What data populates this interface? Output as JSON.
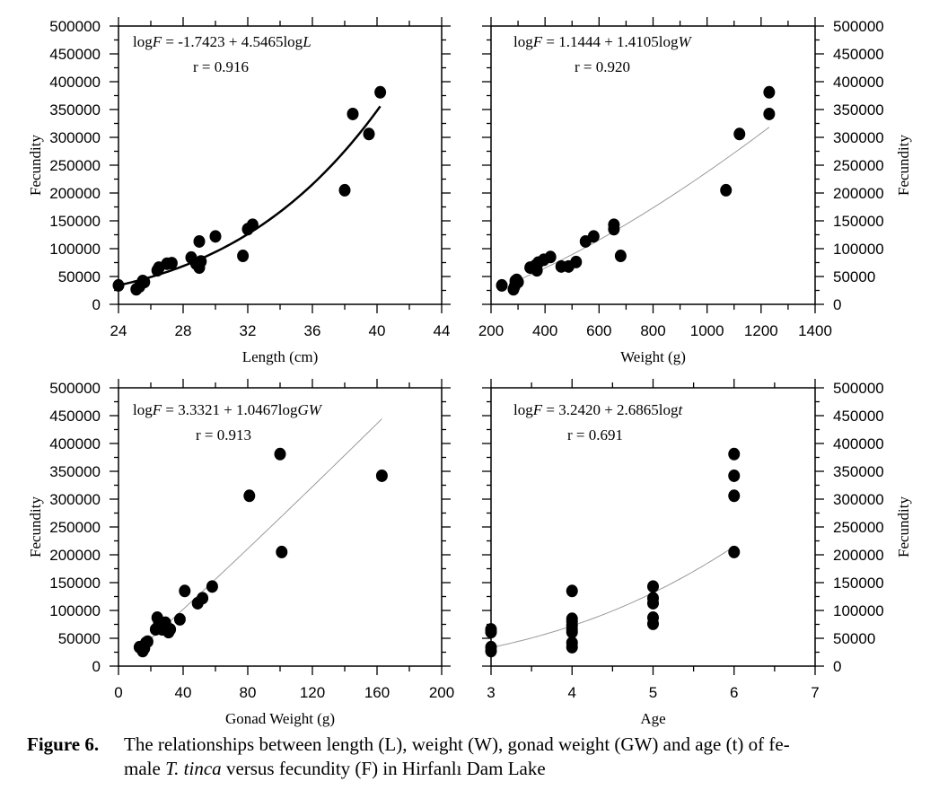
{
  "figure": {
    "caption_label": "Figure 6.",
    "caption_line1": "The relationships between length (L), weight (W), gonad weight (GW) and age (t) of fe-",
    "caption_line2_pre": "male ",
    "caption_line2_italic": "T. tinca",
    "caption_line2_post": " versus fecundity (F) in Hirfanlı Dam Lake"
  },
  "chart_data": [
    {
      "id": "length",
      "type": "scatter",
      "title": "",
      "xlabel": "Length (cm)",
      "ylabel": "Fecundity",
      "ylabel_side": "left",
      "xlim": [
        24,
        44
      ],
      "ylim": [
        0,
        500000
      ],
      "xticks": [
        24,
        28,
        32,
        36,
        40,
        44
      ],
      "yticks": [
        0,
        50000,
        100000,
        150000,
        200000,
        250000,
        300000,
        350000,
        400000,
        450000,
        500000
      ],
      "equation": {
        "prefix": "log",
        "F": "F",
        "mid": " = -1.7423 + 4.5465log",
        "var": "L"
      },
      "r_text": "r = 0.916",
      "fit": {
        "kind": "power_log10",
        "a": -1.7423,
        "b": 4.5465,
        "x_range": [
          24,
          40.2
        ],
        "style": "bold"
      },
      "points": [
        [
          24.0,
          34000
        ],
        [
          25.1,
          27000
        ],
        [
          25.3,
          32000
        ],
        [
          25.5,
          42000
        ],
        [
          25.6,
          40000
        ],
        [
          26.4,
          61000
        ],
        [
          26.5,
          66000
        ],
        [
          27.0,
          73000
        ],
        [
          27.3,
          74000
        ],
        [
          28.5,
          84000
        ],
        [
          28.8,
          73000
        ],
        [
          29.0,
          66000
        ],
        [
          29.0,
          113000
        ],
        [
          29.1,
          77000
        ],
        [
          30.0,
          122000
        ],
        [
          31.7,
          87000
        ],
        [
          32.0,
          135000
        ],
        [
          32.3,
          143000
        ],
        [
          38.0,
          205000
        ],
        [
          38.5,
          342000
        ],
        [
          39.5,
          306000
        ],
        [
          40.2,
          381000
        ]
      ]
    },
    {
      "id": "weight",
      "type": "scatter",
      "xlabel": "Weight (g)",
      "ylabel": "Fecundity",
      "ylabel_side": "right",
      "xlim": [
        200,
        1400
      ],
      "ylim": [
        0,
        500000
      ],
      "xticks": [
        200,
        400,
        600,
        800,
        1000,
        1200,
        1400
      ],
      "yticks": [
        0,
        50000,
        100000,
        150000,
        200000,
        250000,
        300000,
        350000,
        400000,
        450000,
        500000
      ],
      "equation": {
        "prefix": "log",
        "F": "F",
        "mid": " = 1.1444 + 1.4105log",
        "var": "W"
      },
      "r_text": "r = 0.920",
      "fit": {
        "kind": "power_log10",
        "a": 1.1444,
        "b": 1.4105,
        "x_range": [
          300,
          1230
        ],
        "style": "thin"
      },
      "points": [
        [
          240,
          34000
        ],
        [
          283,
          27000
        ],
        [
          287,
          32000
        ],
        [
          290,
          42000
        ],
        [
          295,
          44000
        ],
        [
          300,
          40000
        ],
        [
          345,
          66000
        ],
        [
          365,
          70000
        ],
        [
          370,
          61000
        ],
        [
          375,
          75000
        ],
        [
          395,
          80000
        ],
        [
          420,
          85000
        ],
        [
          460,
          68000
        ],
        [
          487,
          68000
        ],
        [
          515,
          76000
        ],
        [
          550,
          113000
        ],
        [
          580,
          122000
        ],
        [
          655,
          135000
        ],
        [
          655,
          143000
        ],
        [
          680,
          87000
        ],
        [
          1070,
          205000
        ],
        [
          1120,
          306000
        ],
        [
          1230,
          342000
        ],
        [
          1230,
          381000
        ]
      ]
    },
    {
      "id": "gonad",
      "type": "scatter",
      "xlabel": "Gonad Weight (g)",
      "ylabel": "Fecundity",
      "ylabel_side": "left",
      "xlim": [
        0,
        200
      ],
      "ylim": [
        0,
        500000
      ],
      "xticks": [
        0,
        40,
        80,
        120,
        160,
        200
      ],
      "yticks": [
        0,
        50000,
        100000,
        150000,
        200000,
        250000,
        300000,
        350000,
        400000,
        450000,
        500000
      ],
      "equation": {
        "prefix": "log",
        "F": "F",
        "mid": " = 3.3321 + 1.0467log",
        "var": "GW"
      },
      "r_text": "r =  0.913",
      "fit": {
        "kind": "power_log10",
        "a": 3.3321,
        "b": 1.0467,
        "x_range": [
          14,
          163
        ],
        "style": "thin"
      },
      "points": [
        [
          13,
          34000
        ],
        [
          15,
          27000
        ],
        [
          16,
          32000
        ],
        [
          17,
          42000
        ],
        [
          18,
          44000
        ],
        [
          23,
          66000
        ],
        [
          24,
          87000
        ],
        [
          25,
          76000
        ],
        [
          27,
          66000
        ],
        [
          29,
          78000
        ],
        [
          31,
          61000
        ],
        [
          32,
          66000
        ],
        [
          38,
          84000
        ],
        [
          41,
          135000
        ],
        [
          49,
          113000
        ],
        [
          52,
          122000
        ],
        [
          58,
          143000
        ],
        [
          81,
          306000
        ],
        [
          100,
          381000
        ],
        [
          101,
          205000
        ],
        [
          163,
          342000
        ]
      ]
    },
    {
      "id": "age",
      "type": "scatter",
      "xlabel": "Age",
      "ylabel": "Fecundity",
      "ylabel_side": "right",
      "xlim": [
        3,
        7
      ],
      "ylim": [
        0,
        500000
      ],
      "xticks": [
        3,
        4,
        5,
        6,
        7
      ],
      "yticks": [
        0,
        50000,
        100000,
        150000,
        200000,
        250000,
        300000,
        350000,
        400000,
        450000,
        500000
      ],
      "equation": {
        "prefix": "log",
        "F": "F",
        "mid": " = 3.2420 + 2.6865log",
        "var": "t"
      },
      "r_text": "r =  0.691",
      "fit": {
        "kind": "power_log10",
        "a": 3.242,
        "b": 2.6865,
        "x_range": [
          3,
          6
        ],
        "style": "thin"
      },
      "points": [
        [
          3,
          27000
        ],
        [
          3,
          34000
        ],
        [
          3,
          61000
        ],
        [
          3,
          66000
        ],
        [
          4,
          34000
        ],
        [
          4,
          42000
        ],
        [
          4,
          61000
        ],
        [
          4,
          66000
        ],
        [
          4,
          73000
        ],
        [
          4,
          80000
        ],
        [
          4,
          85000
        ],
        [
          4,
          135000
        ],
        [
          5,
          76000
        ],
        [
          5,
          87000
        ],
        [
          5,
          113000
        ],
        [
          5,
          122000
        ],
        [
          5,
          143000
        ],
        [
          6,
          205000
        ],
        [
          6,
          306000
        ],
        [
          6,
          342000
        ],
        [
          6,
          381000
        ]
      ]
    }
  ]
}
